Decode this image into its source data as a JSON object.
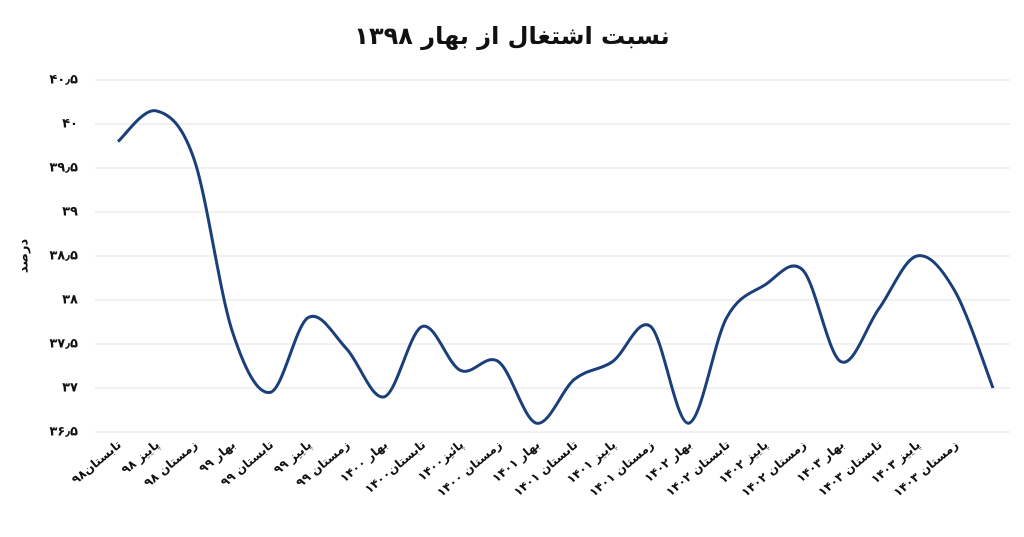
{
  "chart_data": {
    "type": "line",
    "title": "نسبت اشتغال از بهار ۱۳۹۸",
    "ylabel": "درصد",
    "categories": [
      "تابستان۹۸",
      "پاییز ۹۸",
      "زمستان ۹۸",
      "بهار ۹۹",
      "تابستان ۹۹",
      "پاییز ۹۹",
      "زمستان ۹۹",
      "بهار ۱۴۰۰",
      "تابستان۱۴۰۰",
      "پائیز۱۴۰۰",
      "زمستان ۱۴۰۰",
      "بهار ۱۴۰۱",
      "تابستان ۱۴۰۱",
      "پاییز ۱۴۰۱",
      "زمستان ۱۴۰۱",
      "بهار ۱۴۰۲",
      "تابستان ۱۴۰۲",
      "پاییز ۱۴۰۲",
      "زمستان ۱۴۰۲",
      "بهار ۱۴۰۳",
      "تابستان ۱۴۰۳",
      "پاییز ۱۴۰۳",
      "زمستان ۱۴۰۳",
      null
    ],
    "values": [
      39.8,
      40.15,
      39.6,
      37.65,
      36.95,
      37.8,
      37.45,
      36.9,
      37.7,
      37.2,
      37.3,
      36.6,
      37.1,
      37.3,
      37.7,
      36.6,
      37.8,
      38.17,
      38.34,
      37.3,
      37.9,
      38.5,
      38.1,
      37.0
    ],
    "color": "#1b3f7a",
    "ylim": [
      36.5,
      40.5
    ],
    "yticks": [
      {
        "value": 36.5,
        "label": "۳۶٫۵"
      },
      {
        "value": 37,
        "label": "۳۷"
      },
      {
        "value": 37.5,
        "label": "۳۷٫۵"
      },
      {
        "value": 38,
        "label": "۳۸"
      },
      {
        "value": 38.5,
        "label": "۳۸٫۵"
      },
      {
        "value": 39,
        "label": "۳۹"
      },
      {
        "value": 39.5,
        "label": "۳۹٫۵"
      },
      {
        "value": 40,
        "label": "۴۰"
      },
      {
        "value": 40.5,
        "label": "۴۰٫۵"
      }
    ],
    "grid": true
  }
}
